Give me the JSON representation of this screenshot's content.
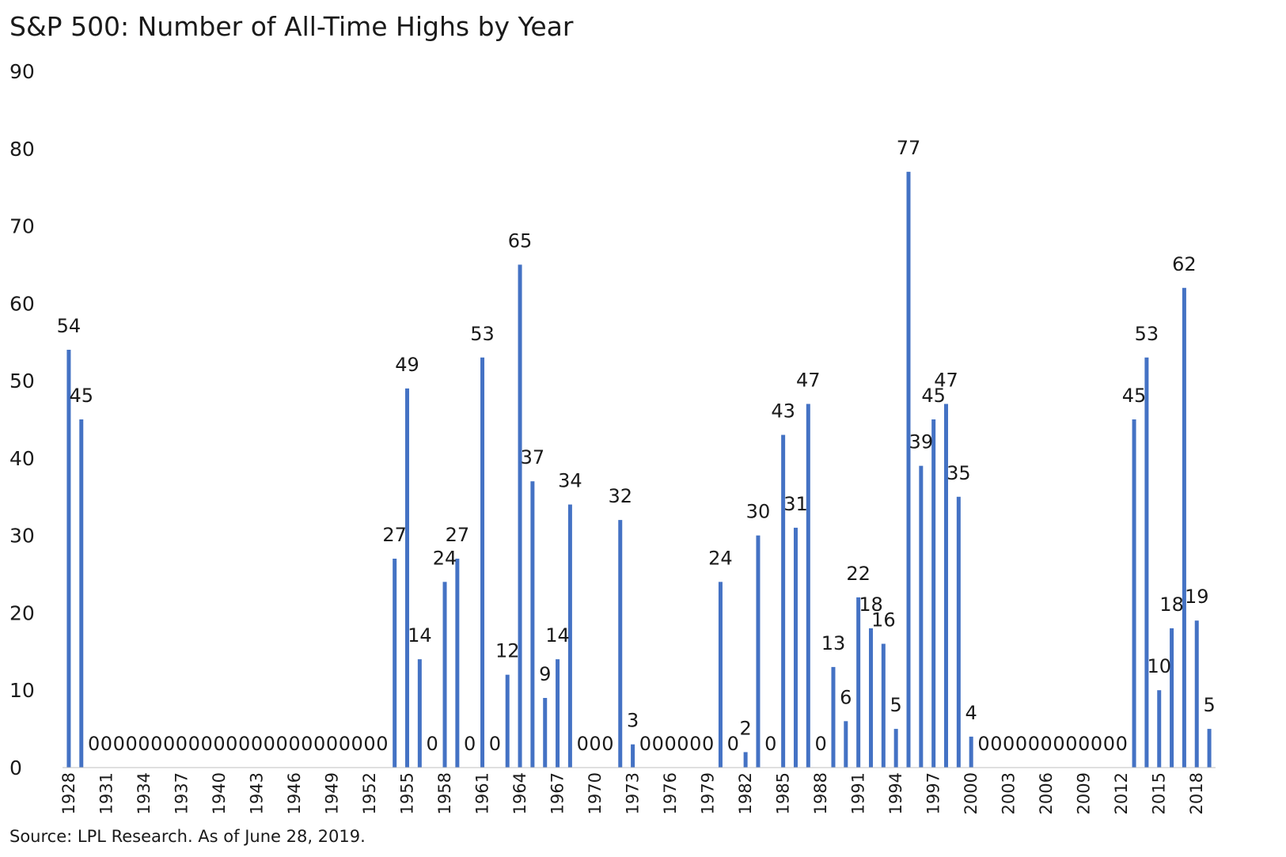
{
  "title": "S&P 500: Number of All-Time Highs by Year",
  "source": "Source: LPL Research. As of June 28, 2019.",
  "chart_data": {
    "type": "bar",
    "title": "S&P 500: Number of All-Time Highs by Year",
    "xlabel": "",
    "ylabel": "",
    "ylim": [
      0,
      90
    ],
    "yticks": [
      0,
      10,
      20,
      30,
      40,
      50,
      60,
      70,
      80,
      90
    ],
    "grid": false,
    "legend": "none",
    "bar_color": "#4472c4",
    "categories": [
      "1928",
      "1929",
      "1930",
      "1931",
      "1932",
      "1933",
      "1934",
      "1935",
      "1936",
      "1937",
      "1938",
      "1939",
      "1940",
      "1941",
      "1942",
      "1943",
      "1944",
      "1945",
      "1946",
      "1947",
      "1948",
      "1949",
      "1950",
      "1951",
      "1952",
      "1953",
      "1954",
      "1955",
      "1956",
      "1957",
      "1958",
      "1959",
      "1960",
      "1961",
      "1962",
      "1963",
      "1964",
      "1965",
      "1966",
      "1967",
      "1968",
      "1969",
      "1970",
      "1971",
      "1972",
      "1973",
      "1974",
      "1975",
      "1976",
      "1977",
      "1978",
      "1979",
      "1980",
      "1981",
      "1982",
      "1983",
      "1984",
      "1985",
      "1986",
      "1987",
      "1988",
      "1989",
      "1990",
      "1991",
      "1992",
      "1993",
      "1994",
      "1995",
      "1996",
      "1997",
      "1998",
      "1999",
      "2000",
      "2001",
      "2002",
      "2003",
      "2004",
      "2005",
      "2006",
      "2007",
      "2008",
      "2009",
      "2010",
      "2011",
      "2012",
      "2013",
      "2014",
      "2015",
      "2016",
      "2017",
      "2018",
      "2019"
    ],
    "values": [
      54,
      45,
      0,
      0,
      0,
      0,
      0,
      0,
      0,
      0,
      0,
      0,
      0,
      0,
      0,
      0,
      0,
      0,
      0,
      0,
      0,
      0,
      0,
      0,
      0,
      0,
      27,
      49,
      14,
      0,
      24,
      27,
      0,
      53,
      0,
      12,
      65,
      37,
      9,
      14,
      34,
      0,
      0,
      0,
      32,
      3,
      0,
      0,
      0,
      0,
      0,
      0,
      24,
      0,
      2,
      30,
      0,
      43,
      31,
      47,
      0,
      13,
      6,
      22,
      18,
      16,
      5,
      77,
      39,
      45,
      47,
      35,
      4,
      0,
      0,
      0,
      0,
      0,
      0,
      0,
      0,
      0,
      0,
      0,
      0,
      45,
      53,
      10,
      18,
      62,
      19,
      5
    ],
    "x_tick_labels": [
      "1928",
      "1931",
      "1934",
      "1937",
      "1940",
      "1943",
      "1946",
      "1949",
      "1952",
      "1955",
      "1958",
      "1961",
      "1964",
      "1967",
      "1970",
      "1973",
      "1976",
      "1979",
      "1982",
      "1985",
      "1988",
      "1991",
      "1994",
      "1997",
      "2000",
      "2003",
      "2006",
      "2009",
      "2012",
      "2015",
      "2018"
    ]
  }
}
